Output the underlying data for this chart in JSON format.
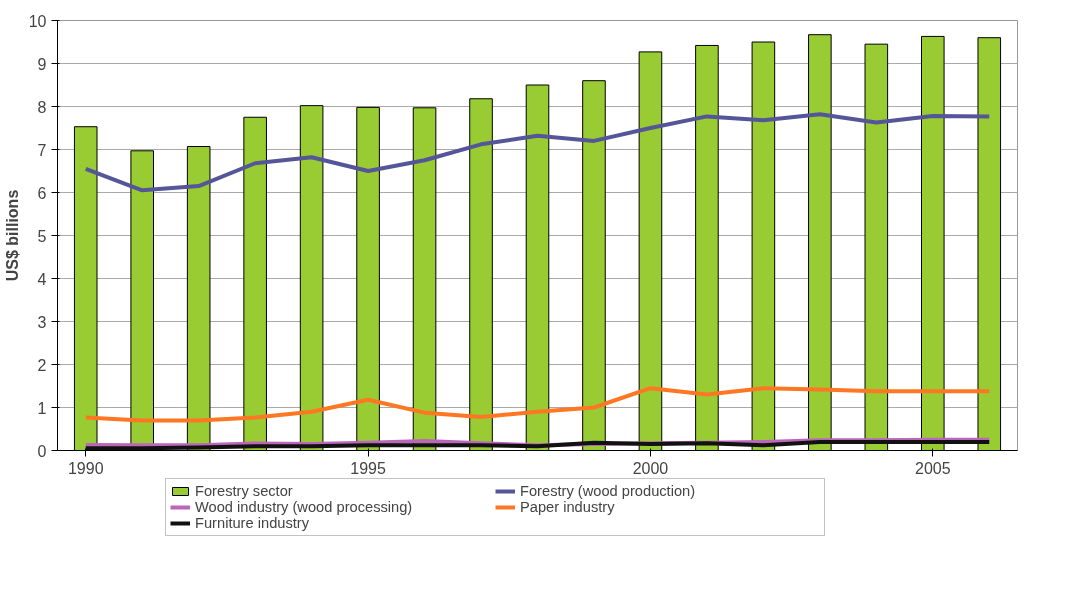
{
  "chart_data": {
    "type": "bar",
    "ylabel": "US$ billions",
    "x": [
      1990,
      1991,
      1992,
      1993,
      1994,
      1995,
      1996,
      1997,
      1998,
      1999,
      2000,
      2001,
      2002,
      2003,
      2004,
      2005,
      2006
    ],
    "xlim": [
      1989.5,
      2006.5
    ],
    "xticks": [
      1990,
      1995,
      2000,
      2005
    ],
    "ylim": [
      0,
      10
    ],
    "yticks": [
      0,
      1,
      2,
      3,
      4,
      5,
      6,
      7,
      8,
      9,
      10
    ],
    "grid": "y",
    "legend": "bottom",
    "series": [
      {
        "name": "Forestry sector",
        "color": "#99cc33",
        "values": [
          7.53,
          6.97,
          7.07,
          7.75,
          8.02,
          7.98,
          7.97,
          8.18,
          8.5,
          8.6,
          9.27,
          9.42,
          9.5,
          9.67,
          9.45,
          9.63,
          9.6
        ]
      },
      {
        "name": "Forestry (wood production)",
        "type": "line",
        "color": "#555599",
        "values": [
          6.55,
          6.05,
          6.15,
          6.68,
          6.82,
          6.5,
          6.75,
          7.12,
          7.32,
          7.2,
          7.5,
          7.77,
          7.68,
          7.82,
          7.63,
          7.78,
          7.77
        ]
      },
      {
        "name": "Wood industry (wood processing)",
        "type": "line",
        "color": "#bb66bb",
        "values": [
          0.13,
          0.12,
          0.12,
          0.16,
          0.15,
          0.18,
          0.22,
          0.17,
          0.12,
          0.15,
          0.17,
          0.18,
          0.2,
          0.24,
          0.24,
          0.25,
          0.25
        ]
      },
      {
        "name": "Paper industry",
        "type": "line",
        "color": "#ff7722",
        "values": [
          0.77,
          0.7,
          0.7,
          0.77,
          0.9,
          1.18,
          0.88,
          0.78,
          0.9,
          1.0,
          1.45,
          1.3,
          1.45,
          1.42,
          1.38,
          1.38,
          1.38
        ]
      },
      {
        "name": "Furniture industry",
        "type": "line",
        "color": "#111111",
        "values": [
          0.05,
          0.05,
          0.07,
          0.1,
          0.1,
          0.12,
          0.12,
          0.12,
          0.1,
          0.18,
          0.15,
          0.17,
          0.12,
          0.2,
          0.2,
          0.2,
          0.2
        ]
      }
    ]
  }
}
